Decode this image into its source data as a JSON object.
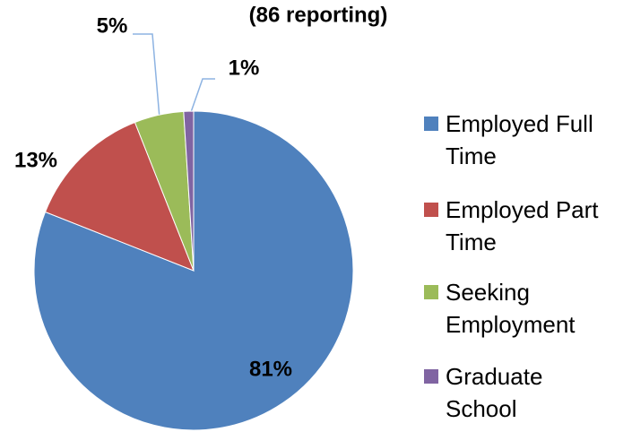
{
  "chart_data": {
    "type": "pie",
    "title": "(86 reporting)",
    "categories": [
      "Employed Full Time",
      "Employed Part Time",
      "Seeking Employment",
      "Graduate School"
    ],
    "values": [
      81,
      13,
      5,
      1
    ],
    "value_labels": [
      "81%",
      "13%",
      "5%",
      "1%"
    ],
    "colors": [
      "#4f81bd",
      "#c0504d",
      "#9bbb59",
      "#8064a2"
    ],
    "legend": "right"
  }
}
